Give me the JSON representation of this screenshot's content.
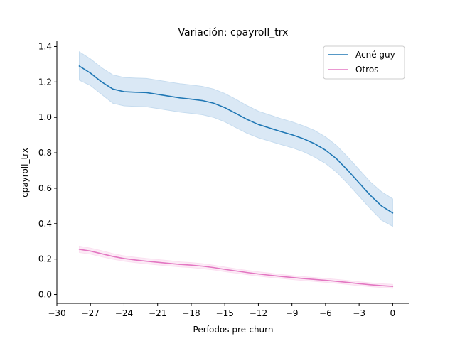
{
  "chart_data": {
    "type": "line",
    "title": "Variación: cpayroll_trx",
    "xlabel": "Períodos pre-churn",
    "ylabel": "cpayroll_trx",
    "xlim": [
      -30,
      1.5
    ],
    "ylim": [
      -0.05,
      1.43
    ],
    "xticks": [
      -30,
      -27,
      -24,
      -21,
      -18,
      -15,
      -12,
      -9,
      -6,
      -3,
      0
    ],
    "xtick_labels": [
      "−30",
      "−27",
      "−24",
      "−21",
      "−18",
      "−15",
      "−12",
      "−9",
      "−6",
      "−3",
      "0"
    ],
    "yticks": [
      0.0,
      0.2,
      0.4,
      0.6,
      0.8,
      1.0,
      1.2,
      1.4
    ],
    "ytick_labels": [
      "0.0",
      "0.2",
      "0.4",
      "0.6",
      "0.8",
      "1.0",
      "1.2",
      "1.4"
    ],
    "legend_position": "top-right",
    "grid": false,
    "x": [
      -28,
      -27,
      -26,
      -25,
      -24,
      -23,
      -22,
      -21,
      -20,
      -19,
      -18,
      -17,
      -16,
      -15,
      -14,
      -13,
      -12,
      -11,
      -10,
      -9,
      -8,
      -7,
      -6,
      -5,
      -4,
      -3,
      -2,
      -1,
      0
    ],
    "series": [
      {
        "name": "Acné guy",
        "color": "#1f77b4",
        "band_color": "#c6dcef",
        "values": [
          1.29,
          1.25,
          1.2,
          1.16,
          1.145,
          1.142,
          1.14,
          1.13,
          1.12,
          1.11,
          1.103,
          1.095,
          1.08,
          1.055,
          1.022,
          0.988,
          0.96,
          0.94,
          0.92,
          0.902,
          0.88,
          0.852,
          0.815,
          0.765,
          0.7,
          0.63,
          0.56,
          0.5,
          0.46
        ],
        "lower": [
          1.21,
          1.18,
          1.13,
          1.08,
          1.065,
          1.062,
          1.06,
          1.05,
          1.04,
          1.03,
          1.023,
          1.015,
          1.0,
          0.975,
          0.942,
          0.91,
          0.885,
          0.866,
          0.847,
          0.829,
          0.807,
          0.777,
          0.74,
          0.69,
          0.625,
          0.555,
          0.485,
          0.42,
          0.385
        ],
        "upper": [
          1.37,
          1.33,
          1.28,
          1.24,
          1.225,
          1.222,
          1.22,
          1.21,
          1.2,
          1.19,
          1.183,
          1.175,
          1.16,
          1.135,
          1.102,
          1.066,
          1.035,
          1.014,
          0.993,
          0.975,
          0.953,
          0.927,
          0.89,
          0.84,
          0.775,
          0.705,
          0.635,
          0.58,
          0.54
        ]
      },
      {
        "name": "Otros",
        "color": "#e377c2",
        "band_color": "#fbe0f1",
        "values": [
          0.255,
          0.245,
          0.23,
          0.215,
          0.203,
          0.195,
          0.188,
          0.182,
          0.176,
          0.17,
          0.166,
          0.16,
          0.152,
          0.142,
          0.133,
          0.124,
          0.116,
          0.109,
          0.102,
          0.096,
          0.09,
          0.085,
          0.08,
          0.074,
          0.068,
          0.061,
          0.055,
          0.05,
          0.046
        ],
        "lower": [
          0.237,
          0.228,
          0.213,
          0.199,
          0.188,
          0.18,
          0.173,
          0.167,
          0.161,
          0.156,
          0.152,
          0.146,
          0.139,
          0.129,
          0.121,
          0.112,
          0.104,
          0.097,
          0.091,
          0.085,
          0.079,
          0.074,
          0.069,
          0.063,
          0.057,
          0.05,
          0.044,
          0.039,
          0.035
        ],
        "upper": [
          0.273,
          0.262,
          0.247,
          0.231,
          0.218,
          0.21,
          0.203,
          0.197,
          0.191,
          0.184,
          0.18,
          0.174,
          0.165,
          0.155,
          0.145,
          0.136,
          0.128,
          0.121,
          0.113,
          0.107,
          0.101,
          0.096,
          0.091,
          0.085,
          0.079,
          0.072,
          0.066,
          0.061,
          0.057
        ]
      }
    ]
  }
}
